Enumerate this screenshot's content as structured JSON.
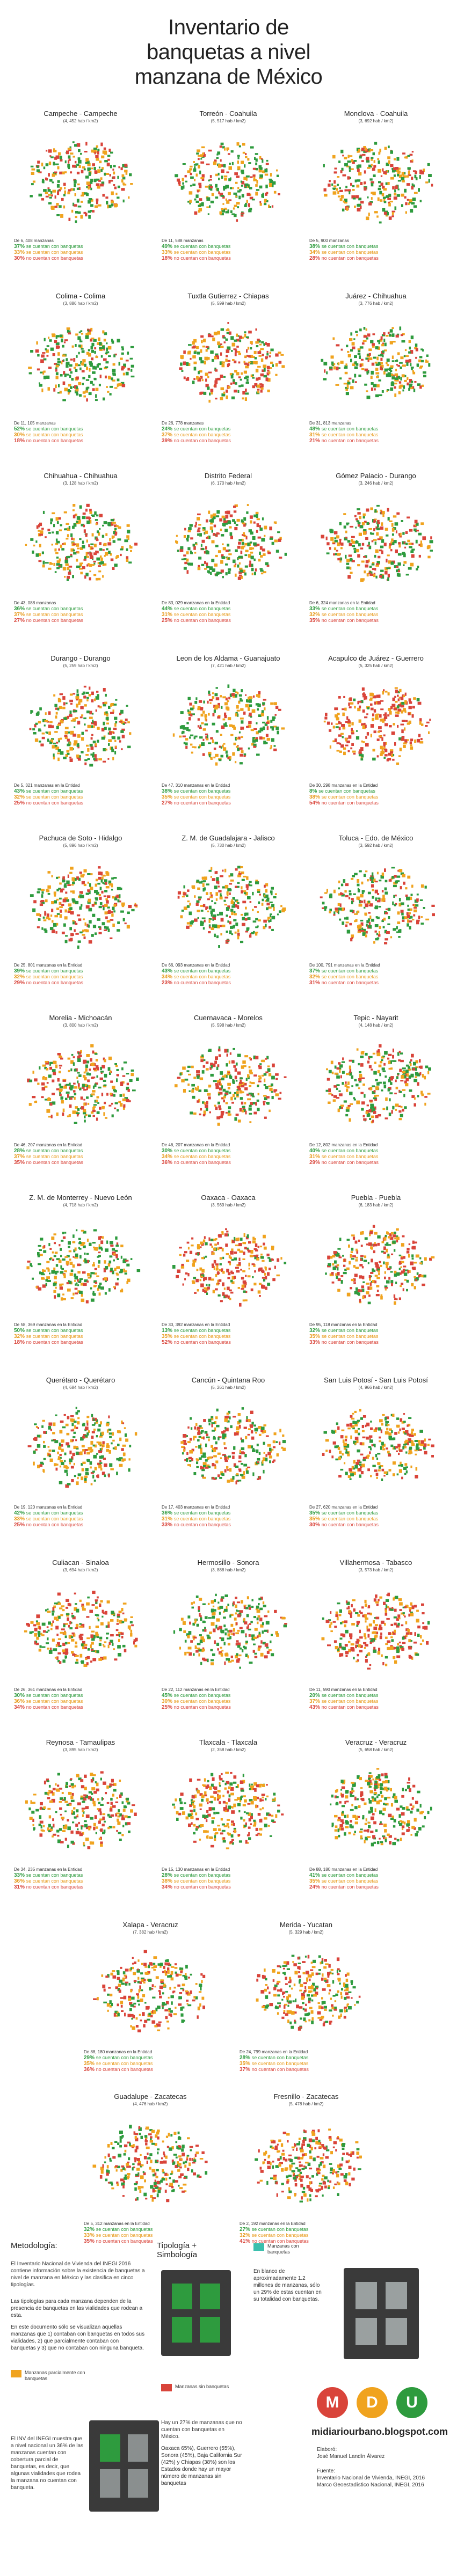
{
  "title_line1": "Inventario de",
  "title_line2": "banquetas a nivel",
  "title_line3": "manzana de México",
  "colors": {
    "green": "#2e9b3e",
    "orange": "#f0a31e",
    "red": "#d9443a",
    "teal": "#3bbfad"
  },
  "chart_data": {
    "type": "table",
    "columns": [
      "ciudad",
      "densidad",
      "manzanas",
      "todas",
      "algunas",
      "ninguna"
    ],
    "rows": [
      {
        "city": "Campeche - Campeche",
        "density": "(4, 452 hab / km2)",
        "blocks": "De 6, 408 manzanas",
        "all": 37,
        "some": 33,
        "none": 30
      },
      {
        "city": "Torreón - Coahuila",
        "density": "(5, 517 hab / km2)",
        "blocks": "De 11, 588 manzanas",
        "all": 49,
        "some": 33,
        "none": 18
      },
      {
        "city": "Monclova - Coahuila",
        "density": "(3, 692 hab / km2)",
        "blocks": "De 5, 900 manzanas",
        "all": 38,
        "some": 34,
        "none": 28
      },
      {
        "city": "Colima - Colima",
        "density": "(3, 886 hab / km2)",
        "blocks": "De 11, 105 manzanas",
        "all": 52,
        "some": 30,
        "none": 18
      },
      {
        "city": "Tuxtla Gutierrez - Chiapas",
        "density": "(5, 599 hab / km2)",
        "blocks": "De 26, 778 manzanas",
        "all": 24,
        "some": 37,
        "none": 39
      },
      {
        "city": "Juárez - Chihuahua",
        "density": "(3, 776 hab / km2)",
        "blocks": "De 31, 813 manzanas",
        "all": 48,
        "some": 31,
        "none": 21
      },
      {
        "city": "Chihuahua - Chihuahua",
        "density": "(3, 128 hab / km2)",
        "blocks": "De 43, 088 manzanas",
        "all": 36,
        "some": 37,
        "none": 27
      },
      {
        "city": "Distrito Federal",
        "density": "(6, 170 hab / km2)",
        "blocks": "De 83, 029 manzanas en la Entidad",
        "all": 44,
        "some": 31,
        "none": 25
      },
      {
        "city": "Gómez Palacio - Durango",
        "density": "(3, 246 hab / km2)",
        "blocks": "De 6, 324 manzanas en la Entidad",
        "all": 33,
        "some": 32,
        "none": 35
      },
      {
        "city": "Durango - Durango",
        "density": "(5, 259 hab / km2)",
        "blocks": "De 5, 321 manzanas en la Entidad",
        "all": 43,
        "some": 32,
        "none": 25
      },
      {
        "city": "Leon de los Aldama - Guanajuato",
        "density": "(7, 421 hab / km2)",
        "blocks": "De 47, 310 manzanas en la Entidad",
        "all": 38,
        "some": 35,
        "none": 27
      },
      {
        "city": "Acapulco de Juárez - Guerrero",
        "density": "(5, 325 hab / km2)",
        "blocks": "De 30, 298 manzanas en la Entidad",
        "all": 8,
        "some": 38,
        "none": 54
      },
      {
        "city": "Pachuca de Soto - Hidalgo",
        "density": "(5, 896 hab / km2)",
        "blocks": "De 25, 801 manzanas en la Entidad",
        "all": 39,
        "some": 32,
        "none": 29
      },
      {
        "city": "Z. M. de Guadalajara - Jalisco",
        "density": "(5, 730 hab / km2)",
        "blocks": "De 66, 093 manzanas en la Entidad",
        "all": 43,
        "some": 34,
        "none": 23
      },
      {
        "city": "Toluca - Edo. de México",
        "density": "(3, 592 hab / km2)",
        "blocks": "De 100, 791 manzanas en la Entidad",
        "all": 37,
        "some": 32,
        "none": 31
      },
      {
        "city": "Morelia - Michoacán",
        "density": "(3, 800 hab / km2)",
        "blocks": "De 46, 207 manzanas en la Entidad",
        "all": 28,
        "some": 37,
        "none": 35
      },
      {
        "city": "Cuernavaca - Morelos",
        "density": "(5, 598 hab / km2)",
        "blocks": "De 46, 207 manzanas en la Entidad",
        "all": 30,
        "some": 34,
        "none": 36
      },
      {
        "city": "Tepic - Nayarit",
        "density": "(4, 148 hab / km2)",
        "blocks": "De 12, 802 manzanas en la Entidad",
        "all": 40,
        "some": 31,
        "none": 29
      },
      {
        "city": "Z. M. de Monterrey - Nuevo León",
        "density": "(4, 718 hab / km2)",
        "blocks": "De 58, 369 manzanas en la Entidad",
        "all": 50,
        "some": 32,
        "none": 18
      },
      {
        "city": "Oaxaca - Oaxaca",
        "density": "(3, 569 hab / km2)",
        "blocks": "De 30, 392 manzanas en la Entidad",
        "all": 13,
        "some": 35,
        "none": 52
      },
      {
        "city": "Puebla - Puebla",
        "density": "(6, 183 hab / km2)",
        "blocks": "De 95, 118 manzanas en la Entidad",
        "all": 32,
        "some": 35,
        "none": 33
      },
      {
        "city": "Querétaro - Querétaro",
        "density": "(4, 684 hab / km2)",
        "blocks": "De 19, 120 manzanas en la Entidad",
        "all": 42,
        "some": 33,
        "none": 25
      },
      {
        "city": "Cancún - Quintana Roo",
        "density": "(5, 261 hab / km2)",
        "blocks": "De 17, 403 manzanas en la Entidad",
        "all": 36,
        "some": 31,
        "none": 33
      },
      {
        "city": "San Luis Potosí - San Luis Potosí",
        "density": "(4, 966 hab / km2)",
        "blocks": "De 27, 620 manzanas en la Entidad",
        "all": 35,
        "some": 35,
        "none": 30
      },
      {
        "city": "Culiacan - Sinaloa",
        "density": "(3, 694 hab / km2)",
        "blocks": "De 26, 361 manzanas en la Entidad",
        "all": 30,
        "some": 36,
        "none": 34
      },
      {
        "city": "Hermosillo - Sonora",
        "density": "(3, 888 hab / km2)",
        "blocks": "De 22, 112 manzanas en la Entidad",
        "all": 45,
        "some": 30,
        "none": 25
      },
      {
        "city": "Villahermosa - Tabasco",
        "density": "(3, 573 hab / km2)",
        "blocks": "De 11, 590 manzanas en la Entidad",
        "all": 20,
        "some": 37,
        "none": 43
      },
      {
        "city": "Reynosa - Tamaulipas",
        "density": "(3, 895 hab / km2)",
        "blocks": "De 34, 235 manzanas en la Entidad",
        "all": 33,
        "some": 36,
        "none": 31
      },
      {
        "city": "Tlaxcala - Tlaxcala",
        "density": "(2, 358 hab / km2)",
        "blocks": "De 15, 130 manzanas en la Entidad",
        "all": 28,
        "some": 38,
        "none": 34
      },
      {
        "city": "Veracruz - Veracruz",
        "density": "(5, 658 hab / km2)",
        "blocks": "De 88, 180 manzanas en la Entidad",
        "all": 41,
        "some": 35,
        "none": 24
      },
      {
        "city": "Xalapa - Veracruz",
        "density": "(7, 382 hab / km2)",
        "blocks": "De 88, 180 manzanas en la Entidad",
        "all": 29,
        "some": 35,
        "none": 36
      },
      {
        "city": "Merida - Yucatan",
        "density": "(5, 329 hab / km2)",
        "blocks": "De 24, 799 manzanas en la Entidad",
        "all": 28,
        "some": 35,
        "none": 37
      },
      {
        "city": "Guadalupe - Zacatecas",
        "density": "(4, 476 hab / km2)",
        "blocks": "De 5, 312 manzanas en la Entidad",
        "all": 32,
        "some": 33,
        "none": 35
      },
      {
        "city": "Fresnillo - Zacatecas",
        "density": "(5, 478 hab / km2)",
        "blocks": "De 2, 192 manzanas en la Entidad",
        "all": 27,
        "some": 32,
        "none": 41
      }
    ]
  },
  "labels": {
    "all": "se cuentan con banquetas",
    "some": "se cuentan con banquetas",
    "none": "no cuentan con banquetas"
  },
  "bottom": {
    "metodologia_title": "Metodología:",
    "metodologia_p1": "El Inventario Nacional de Vivienda del INEGI 2016 contiene información sobre la existencia de banquetas a nivel de manzana en México y las clasifica en cinco tipologías.",
    "metodologia_p2": "Las tipologías para cada manzana dependen de la presencia de banquetas en las vialidades que rodean a esta.",
    "metodologia_p3": "En este documento sólo se visualizan aquellas manzanas que 1) contaban con banquetas en todos sus vialidades, 2) que parcialmente contaban con banquetas y 3) que no contaban con ninguna banqueta.",
    "tipologia_title": "Tipología + Simbología",
    "legend_partial": "Manzanas parcialmente con banquetas",
    "legend_green": "Manzanas con banquetas",
    "legend_red": "Manzanas sin banquetas",
    "green_desc": "En blanco de aproximadamente 1.2 millones de manzanas, sólo un 29% de estas cuentan en su totalidad con banquetas.",
    "inegi_note": "El INV del INEGI muestra que a nivel nacional un 36% de las manzanas cuentan con cobertura parcial de banquetas, es decir, que algunas vialidades que rodea la manzana no cuentan con banqueta.",
    "red_desc": "Hay un 27% de manzanas que no cuentan con banquetas en México.",
    "states_desc": "Oaxaca 65%), Guerrero (55%), Sonora (45%), Baja California Sur (42%) y Chiapas (38%) son los Estados donde hay un mayor número de manzanas sin banquetas",
    "mdu_m": "M",
    "mdu_d": "D",
    "mdu_u": "U",
    "site": "midiariourbano.blogspot.com",
    "elaboro_label": "Elaboró:",
    "elaboro_name": "José Manuel Landín Álvarez",
    "fuente_label": "Fuente:",
    "fuente_1": "Inventario Nacional de Vivienda, INEGI, 2016",
    "fuente_2": "Marco Geoestadístico Nacional, INEGI, 2016"
  }
}
